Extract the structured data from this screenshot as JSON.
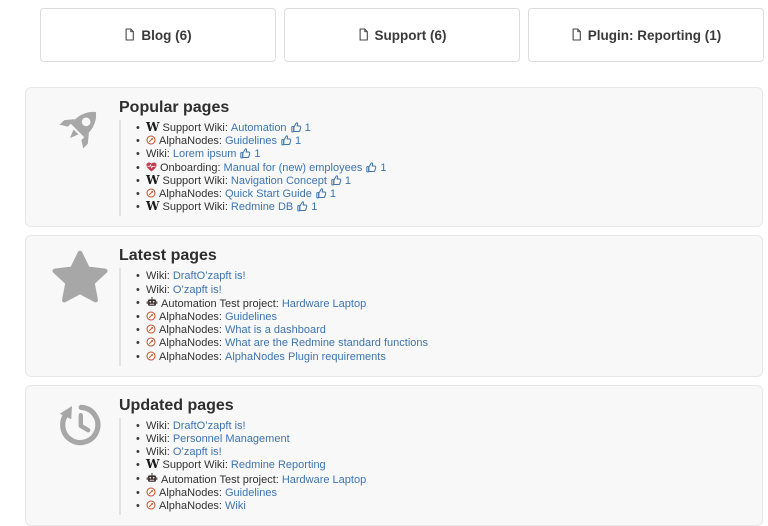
{
  "colors": {
    "link_blue": "#3d74b0",
    "panel_background": "#f8f8f8",
    "panel_border": "#e7e7e7",
    "card_border": "#dcdcdc",
    "icon_gray": "#a7a7a7",
    "text_dark": "#333333",
    "alphanodes_orange": "#c2552f",
    "heart_red": "#c4374d"
  },
  "tabs": [
    {
      "label": "Blog (6)",
      "icon": "document-icon"
    },
    {
      "label": "Support (6)",
      "icon": "document-icon"
    },
    {
      "label": "Plugin: Reporting (1)",
      "icon": "document-icon"
    }
  ],
  "panels": [
    {
      "title": "Popular pages",
      "icon": "rocket-icon",
      "items": [
        {
          "icon": "wikipedia-w-icon",
          "prefix": "Support Wiki:",
          "link": "Automation",
          "likes": "1"
        },
        {
          "icon": "alphanodes-icon",
          "prefix": "AlphaNodes:",
          "link": "Guidelines",
          "likes": "1"
        },
        {
          "icon": null,
          "prefix": "Wiki:",
          "link": "Lorem ipsum",
          "likes": "1"
        },
        {
          "icon": "heart-pulse-icon",
          "prefix": "Onboarding:",
          "link": "Manual for (new) employees",
          "likes": "1"
        },
        {
          "icon": "wikipedia-w-icon",
          "prefix": "Support Wiki:",
          "link": "Navigation Concept",
          "likes": "1"
        },
        {
          "icon": "alphanodes-icon",
          "prefix": "AlphaNodes:",
          "link": "Quick Start Guide",
          "likes": "1"
        },
        {
          "icon": "wikipedia-w-icon",
          "prefix": "Support Wiki:",
          "link": "Redmine DB",
          "likes": "1"
        }
      ]
    },
    {
      "title": "Latest pages",
      "icon": "star-icon",
      "items": [
        {
          "icon": null,
          "prefix": "Wiki:",
          "link": "DraftO’zapft is!"
        },
        {
          "icon": null,
          "prefix": "Wiki:",
          "link": "O’zapft is!"
        },
        {
          "icon": "robot-icon",
          "prefix": "Automation Test project:",
          "link": "Hardware Laptop"
        },
        {
          "icon": "alphanodes-icon",
          "prefix": "AlphaNodes:",
          "link": "Guidelines"
        },
        {
          "icon": "alphanodes-icon",
          "prefix": "AlphaNodes:",
          "link": "What is a dashboard"
        },
        {
          "icon": "alphanodes-icon",
          "prefix": "AlphaNodes:",
          "link": "What are the Redmine standard functions"
        },
        {
          "icon": "alphanodes-icon",
          "prefix": "AlphaNodes:",
          "link": "AlphaNodes Plugin requirements"
        }
      ]
    },
    {
      "title": "Updated pages",
      "icon": "history-icon",
      "items": [
        {
          "icon": null,
          "prefix": "Wiki:",
          "link": "DraftO’zapft is!"
        },
        {
          "icon": null,
          "prefix": "Wiki:",
          "link": "Personnel Management"
        },
        {
          "icon": null,
          "prefix": "Wiki:",
          "link": "O’zapft is!"
        },
        {
          "icon": "wikipedia-w-icon",
          "prefix": "Support Wiki:",
          "link": "Redmine Reporting"
        },
        {
          "icon": "robot-icon",
          "prefix": "Automation Test project:",
          "link": "Hardware Laptop"
        },
        {
          "icon": "alphanodes-icon",
          "prefix": "AlphaNodes:",
          "link": "Guidelines"
        },
        {
          "icon": "alphanodes-icon",
          "prefix": "AlphaNodes:",
          "link": "Wiki"
        }
      ]
    }
  ],
  "like_icon": "thumbs-up-icon"
}
